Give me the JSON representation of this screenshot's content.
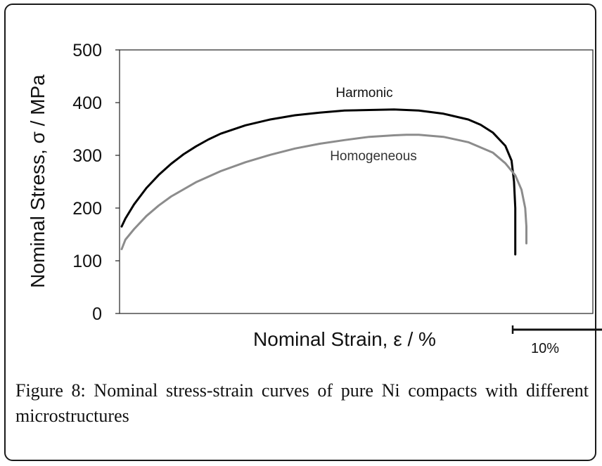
{
  "chart_data": {
    "type": "line",
    "xlabel": "Nominal Strain, ε / %",
    "ylabel": "Nominal Stress, σ / MPa",
    "ylim": [
      0,
      500
    ],
    "yticks": [
      "0",
      "100",
      "200",
      "300",
      "400",
      "500"
    ],
    "x_ticks_shown": false,
    "x_scale_bar": {
      "label": "10%",
      "value": 10
    },
    "grid": false,
    "legend": "inline labels",
    "series": [
      {
        "name": "Harmonic",
        "color": "#000000",
        "points": [
          [
            0.0,
            165
          ],
          [
            0.3,
            180
          ],
          [
            1,
            207
          ],
          [
            2,
            238
          ],
          [
            3,
            263
          ],
          [
            4,
            284
          ],
          [
            5,
            302
          ],
          [
            6,
            317
          ],
          [
            7,
            330
          ],
          [
            8,
            341
          ],
          [
            10,
            357
          ],
          [
            12,
            368
          ],
          [
            14,
            376
          ],
          [
            16,
            381
          ],
          [
            18,
            385
          ],
          [
            20,
            386
          ],
          [
            22,
            387
          ],
          [
            24,
            385
          ],
          [
            26,
            379
          ],
          [
            28,
            368
          ],
          [
            29,
            358
          ],
          [
            30,
            343
          ],
          [
            31,
            318
          ],
          [
            31.5,
            290
          ],
          [
            31.7,
            250
          ],
          [
            31.8,
            200
          ],
          [
            31.8,
            150
          ],
          [
            31.8,
            112
          ]
        ]
      },
      {
        "name": "Homogeneous",
        "color": "#8c8c8c",
        "points": [
          [
            0.0,
            122
          ],
          [
            0.3,
            140
          ],
          [
            1,
            160
          ],
          [
            2,
            185
          ],
          [
            3,
            205
          ],
          [
            4,
            222
          ],
          [
            6,
            249
          ],
          [
            8,
            270
          ],
          [
            10,
            287
          ],
          [
            12,
            301
          ],
          [
            14,
            313
          ],
          [
            16,
            322
          ],
          [
            18,
            329
          ],
          [
            20,
            335
          ],
          [
            22,
            338
          ],
          [
            23,
            339
          ],
          [
            24,
            339
          ],
          [
            26,
            335
          ],
          [
            28,
            325
          ],
          [
            30,
            305
          ],
          [
            31,
            285
          ],
          [
            31.8,
            262
          ],
          [
            32.3,
            235
          ],
          [
            32.6,
            200
          ],
          [
            32.7,
            165
          ],
          [
            32.7,
            133
          ]
        ]
      }
    ]
  },
  "caption": {
    "label": "Figure 8:",
    "text": " Nominal stress-strain curves of pure Ni compacts with different microstructures"
  }
}
